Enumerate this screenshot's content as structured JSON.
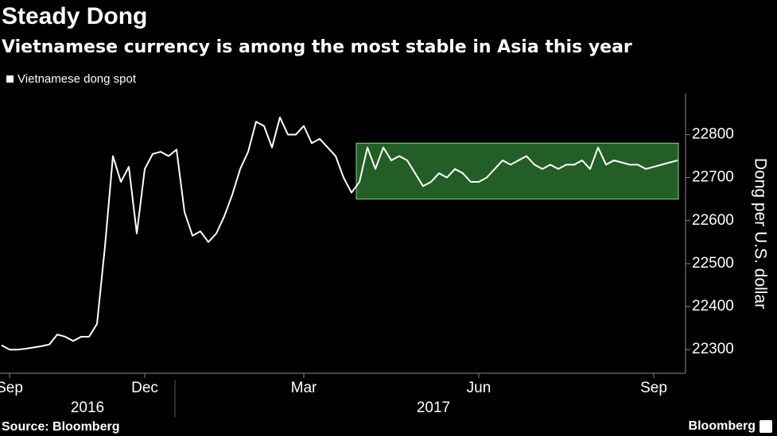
{
  "chart_data": {
    "type": "line",
    "title": "Steady Dong",
    "subtitle": "Vietnamese currency is among the most stable in Asia this year",
    "y_axis_label": "Dong per U.S. dollar",
    "source": "Source: Bloomberg",
    "brand": "Bloomberg",
    "years": [
      "2016",
      "2017"
    ],
    "categories": [
      null,
      "Sep",
      null,
      null,
      null,
      null,
      null,
      null,
      null,
      null,
      null,
      null,
      null,
      null,
      null,
      null,
      null,
      null,
      "Dec",
      null,
      null,
      null,
      null,
      null,
      null,
      null,
      null,
      null,
      null,
      null,
      null,
      null,
      null,
      null,
      null,
      null,
      null,
      null,
      "Mar",
      null,
      null,
      null,
      null,
      null,
      null,
      null,
      null,
      null,
      null,
      null,
      null,
      null,
      null,
      null,
      null,
      null,
      null,
      null,
      null,
      null,
      "Jun",
      null,
      null,
      null,
      null,
      null,
      null,
      null,
      null,
      null,
      null,
      null,
      null,
      null,
      null,
      null,
      null,
      null,
      null,
      null,
      null,
      null,
      "Sep",
      null,
      null,
      null
    ],
    "series": [
      {
        "name": "Vietnamese dong spot",
        "color": "#ffffff",
        "values": [
          22310,
          22300,
          22300,
          22302,
          22305,
          22308,
          22312,
          22335,
          22330,
          22320,
          22330,
          22330,
          22360,
          22540,
          22750,
          22690,
          22725,
          22570,
          22720,
          22755,
          22760,
          22750,
          22765,
          22620,
          22565,
          22575,
          22550,
          22570,
          22610,
          22660,
          22720,
          22760,
          22830,
          22820,
          22770,
          22840,
          22800,
          22800,
          22820,
          22780,
          22790,
          22770,
          22750,
          22700,
          22665,
          22690,
          22770,
          22720,
          22770,
          22740,
          22750,
          22740,
          22710,
          22680,
          22690,
          22710,
          22700,
          22720,
          22710,
          22690,
          22690,
          22700,
          22720,
          22740,
          22730,
          22740,
          22750,
          22730,
          22720,
          22730,
          22720,
          22730,
          22730,
          22740,
          22720,
          22770,
          22730,
          22740,
          22735,
          22730,
          22730,
          22720,
          22725,
          22730,
          22735,
          22740
        ]
      }
    ],
    "highlight": {
      "x_index": [
        45,
        85
      ],
      "y": [
        22650,
        22780
      ],
      "color": "#2e7d32"
    },
    "ylim": [
      22245,
      22895
    ],
    "yticks": [
      22300,
      22400,
      22500,
      22600,
      22700,
      22800
    ],
    "y_axis_side": "right"
  }
}
